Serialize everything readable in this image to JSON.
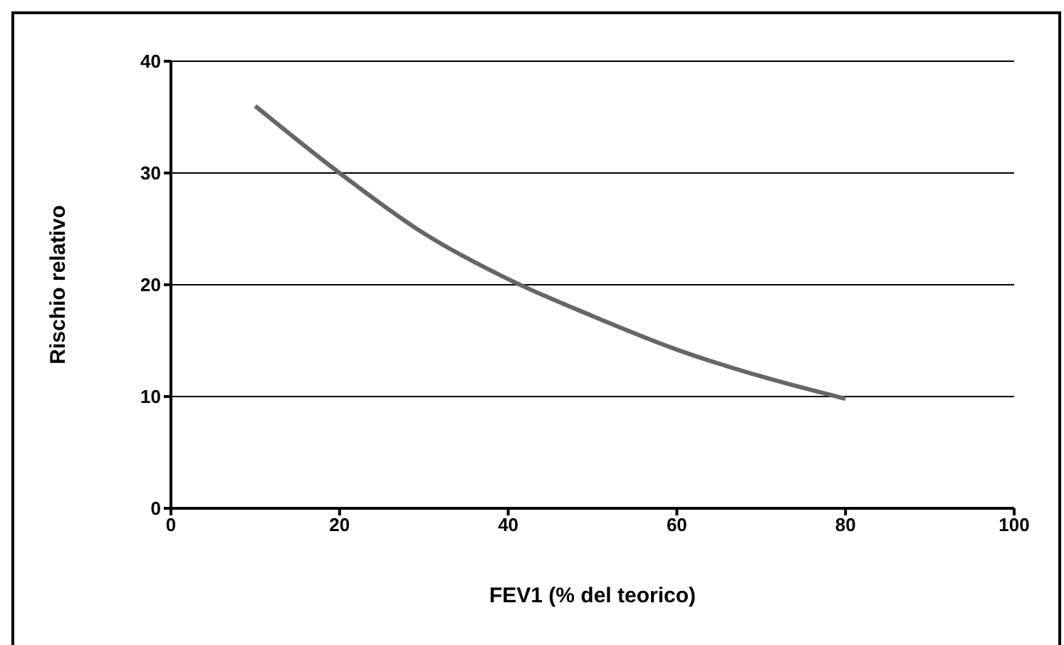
{
  "chart_data": {
    "type": "line",
    "xlabel": "FEV1 (% del teorico)",
    "ylabel": "Rischio relativo",
    "x": [
      10,
      20,
      30,
      40,
      50,
      60,
      70,
      80
    ],
    "series": [
      {
        "color": "#666666",
        "values": [
          36,
          30,
          24.6,
          20.5,
          17.2,
          14.2,
          11.8,
          9.8
        ]
      }
    ],
    "xlim": [
      0,
      100
    ],
    "xticks": [
      0,
      20,
      40,
      60,
      80,
      100
    ],
    "ylim": [
      0,
      40
    ],
    "yticks": [
      0,
      10,
      20,
      30,
      40
    ],
    "grid": "y",
    "legend": false,
    "marker": "none",
    "line_style": "solid"
  }
}
